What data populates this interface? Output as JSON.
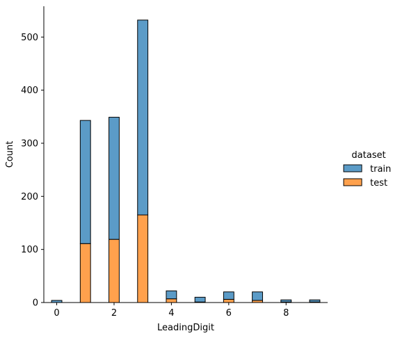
{
  "chart_data": {
    "type": "bar",
    "stacked": true,
    "xlabel": "LeadingDigit",
    "ylabel": "Count",
    "xlim": [
      -0.45,
      9.45
    ],
    "ylim": [
      0,
      558
    ],
    "x_ticks": [
      0,
      2,
      4,
      6,
      8
    ],
    "y_ticks": [
      0,
      100,
      200,
      300,
      400,
      500
    ],
    "bin_width": 0.36,
    "x": [
      0,
      1,
      2,
      3,
      4,
      5,
      6,
      7,
      8,
      9
    ],
    "series": [
      {
        "name": "test",
        "color": "#ffa14d",
        "values": [
          0,
          111,
          119,
          165,
          7,
          1,
          6,
          4,
          1,
          1
        ]
      },
      {
        "name": "train",
        "color": "#5b9bc7",
        "values": [
          4,
          232,
          230,
          367,
          15,
          9,
          14,
          16,
          4,
          4
        ]
      }
    ],
    "legend": {
      "title": "dataset",
      "placement": "right",
      "entries": [
        {
          "label": "train",
          "color": "#5b9bc7"
        },
        {
          "label": "test",
          "color": "#ffa14d"
        }
      ]
    },
    "grid": false
  }
}
